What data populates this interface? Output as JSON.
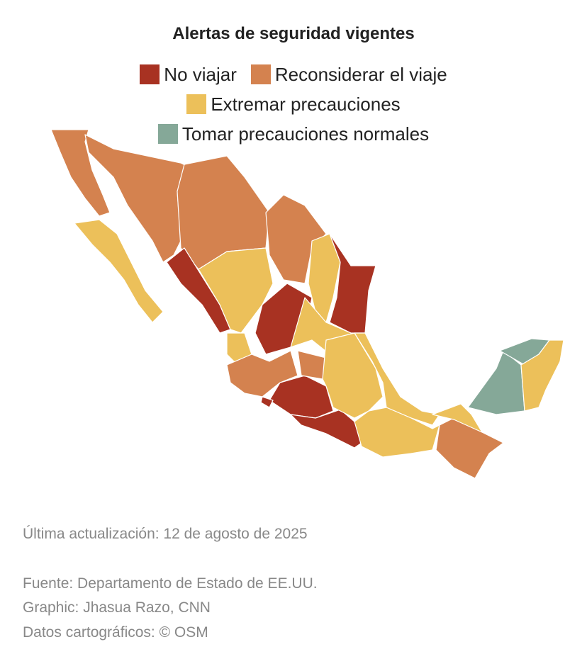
{
  "title": "Alertas de seguridad vigentes",
  "legend": [
    {
      "label": "No viajar",
      "color": "#a83222"
    },
    {
      "label": "Reconsiderar el viaje",
      "color": "#d4824f"
    },
    {
      "label": "Extremar precauciones",
      "color": "#ecc05a"
    },
    {
      "label": "Tomar precauciones normales",
      "color": "#85a898"
    }
  ],
  "footer": {
    "updated": "Última actualización: 12 de agosto de 2025",
    "source": "Fuente: Departamento de Estado de EE.UU.",
    "graphic": "Graphic: Jhasua Razo, CNN",
    "map_data": "Datos cartográficos: © OSM"
  }
}
